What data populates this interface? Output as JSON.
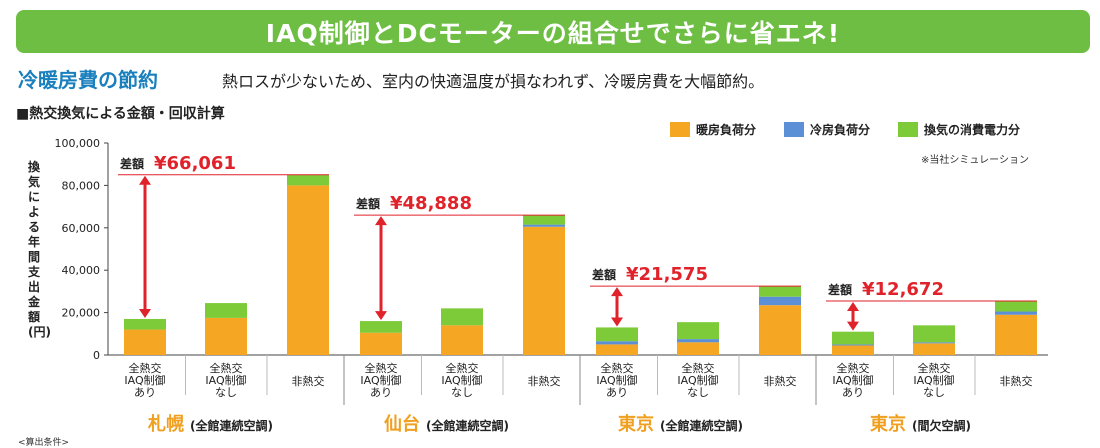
{
  "banner": {
    "title": "IAQ制御とDCモーターの組合せでさらに省エネ!"
  },
  "section": {
    "title": "冷暖房費の節約",
    "description": "熱ロスが少ないため、室内の快適温度が損なわれず、冷暖房費を大幅節約。"
  },
  "chart_subtitle": "■熱交換気による金額・回収計算",
  "note": "※当社シミュレーション",
  "footnote": "<算出条件>",
  "colors": {
    "heating": "#f5a623",
    "cooling": "#5b8fd6",
    "ventilation": "#7ecb3a",
    "accent_line": "#e0222a",
    "banner": "#6fbe44"
  },
  "chart_data": {
    "type": "bar",
    "stacked": true,
    "ylabel": "換気による年間支出金額(円)",
    "ylim": [
      0,
      100000
    ],
    "yticks": [
      "0",
      "20,000",
      "40,000",
      "60,000",
      "80,000",
      "100,000"
    ],
    "grid": false,
    "legend_position": "top-right",
    "series": [
      {
        "name": "暖房負荷分",
        "key": "heating"
      },
      {
        "name": "冷房負荷分",
        "key": "cooling"
      },
      {
        "name": "換気の消費電力分",
        "key": "ventilation"
      }
    ],
    "groups": [
      {
        "city": "札幌",
        "condition": "(全館連続空調)",
        "diff_label": "差額",
        "diff_value": "¥66,061",
        "bars": [
          {
            "label": [
              "全熱交",
              "IAQ制御",
              "あり"
            ],
            "heating": 12000,
            "cooling": 0,
            "ventilation": 5000
          },
          {
            "label": [
              "全熱交",
              "IAQ制御",
              "なし"
            ],
            "heating": 17500,
            "cooling": 0,
            "ventilation": 7000
          },
          {
            "label": [
              "非熱交"
            ],
            "heating": 80000,
            "cooling": 0,
            "ventilation": 5000
          }
        ]
      },
      {
        "city": "仙台",
        "condition": "(全館連続空調)",
        "diff_label": "差額",
        "diff_value": "¥48,888",
        "bars": [
          {
            "label": [
              "全熱交",
              "IAQ制御",
              "あり"
            ],
            "heating": 10500,
            "cooling": 0,
            "ventilation": 5500
          },
          {
            "label": [
              "全熱交",
              "IAQ制御",
              "なし"
            ],
            "heating": 14000,
            "cooling": 0,
            "ventilation": 8000
          },
          {
            "label": [
              "非熱交"
            ],
            "heating": 60500,
            "cooling": 1000,
            "ventilation": 4500
          }
        ]
      },
      {
        "city": "東京",
        "condition": "(全館連続空調)",
        "diff_label": "差額",
        "diff_value": "¥21,575",
        "bars": [
          {
            "label": [
              "全熱交",
              "IAQ制御",
              "あり"
            ],
            "heating": 5000,
            "cooling": 1500,
            "ventilation": 6500
          },
          {
            "label": [
              "全熱交",
              "IAQ制御",
              "なし"
            ],
            "heating": 6000,
            "cooling": 1500,
            "ventilation": 8000
          },
          {
            "label": [
              "非熱交"
            ],
            "heating": 23500,
            "cooling": 4000,
            "ventilation": 5000
          }
        ]
      },
      {
        "city": "東京",
        "condition": "(間欠空調)",
        "diff_label": "差額",
        "diff_value": "¥12,672",
        "bars": [
          {
            "label": [
              "全熱交",
              "IAQ制御",
              "あり"
            ],
            "heating": 4500,
            "cooling": 500,
            "ventilation": 6000
          },
          {
            "label": [
              "全熱交",
              "IAQ制御",
              "なし"
            ],
            "heating": 5500,
            "cooling": 500,
            "ventilation": 8000
          },
          {
            "label": [
              "非熱交"
            ],
            "heating": 19000,
            "cooling": 1500,
            "ventilation": 5000
          }
        ]
      }
    ]
  }
}
